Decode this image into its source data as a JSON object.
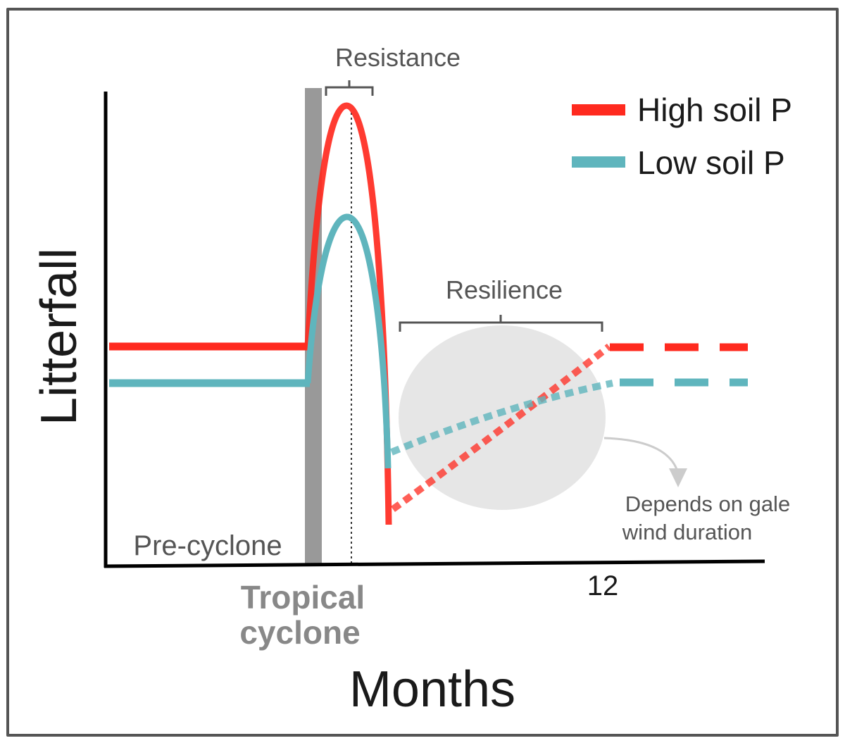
{
  "figure": {
    "y_axis_label": "Litterfall",
    "x_axis_label": "Months",
    "x_tick_label": "12",
    "pre_cyclone_label": "Pre-cyclone",
    "cyclone_label_line1": "Tropical",
    "cyclone_label_line2": "cyclone",
    "resistance_label": "Resistance",
    "resilience_label": "Resilience",
    "annotation_line1": "Depends on gale",
    "annotation_line2": "wind duration"
  },
  "legend": {
    "items": [
      {
        "label": "High soil P",
        "color": "#ff2a1f"
      },
      {
        "label": "Low soil P",
        "color": "#5fb5bd"
      }
    ]
  },
  "colors": {
    "high_p": "#ff2a1f",
    "low_p": "#5fb5bd",
    "cyclone_bar": "#999999",
    "axis": "#000000",
    "bracket": "#555555",
    "text_gray": "#555555",
    "ellipse": "#e6e6e6",
    "arrow": "#cccccc"
  }
}
